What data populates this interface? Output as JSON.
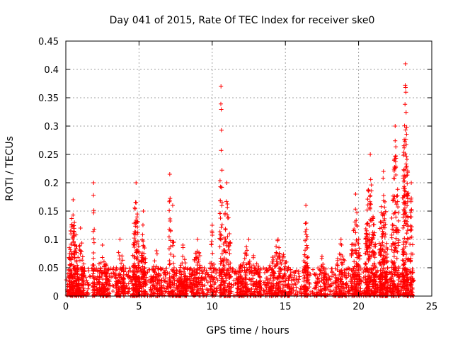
{
  "chart_data": {
    "type": "scatter",
    "title": "Day 041 of 2015, Rate Of TEC Index for receiver ske0",
    "xlabel": "GPS time / hours",
    "ylabel": "ROTI / TECUs",
    "xlim": [
      0,
      25
    ],
    "ylim": [
      0,
      0.45
    ],
    "x_ticks": [
      "0",
      "5",
      "10",
      "15",
      "20",
      "25"
    ],
    "x_tick_values": [
      0,
      5,
      10,
      15,
      20,
      25
    ],
    "y_ticks": [
      "0",
      "0.05",
      "0.1",
      "0.15",
      "0.2",
      "0.25",
      "0.3",
      "0.35",
      "0.4",
      "0.45"
    ],
    "y_tick_values": [
      0,
      0.05,
      0.1,
      0.15,
      0.2,
      0.25,
      0.3,
      0.35,
      0.4,
      0.45
    ],
    "grid": true,
    "marker": "+",
    "color": "#ff0000",
    "series": [
      {
        "name": "ROTI",
        "baseline": {
          "x_range": [
            0.0,
            23.8
          ],
          "y_range": [
            0.0,
            0.05
          ],
          "n": 1400
        },
        "clusters": [
          {
            "x": 0.5,
            "peak": 0.17,
            "width": 0.6,
            "n": 140
          },
          {
            "x": 1.0,
            "peak": 0.12,
            "width": 0.5,
            "n": 80
          },
          {
            "x": 1.9,
            "peak": 0.2,
            "width": 0.15,
            "n": 35
          },
          {
            "x": 2.5,
            "peak": 0.09,
            "width": 0.8,
            "n": 80
          },
          {
            "x": 3.7,
            "peak": 0.1,
            "width": 0.6,
            "n": 70
          },
          {
            "x": 4.8,
            "peak": 0.2,
            "width": 0.45,
            "n": 130
          },
          {
            "x": 5.3,
            "peak": 0.15,
            "width": 0.3,
            "n": 60
          },
          {
            "x": 6.2,
            "peak": 0.08,
            "width": 0.8,
            "n": 60
          },
          {
            "x": 7.1,
            "peak": 0.215,
            "width": 0.15,
            "n": 30
          },
          {
            "x": 7.3,
            "peak": 0.16,
            "width": 0.2,
            "n": 25
          },
          {
            "x": 8.0,
            "peak": 0.09,
            "width": 0.6,
            "n": 70
          },
          {
            "x": 9.0,
            "peak": 0.1,
            "width": 0.7,
            "n": 70
          },
          {
            "x": 10.0,
            "peak": 0.125,
            "width": 0.3,
            "n": 30
          },
          {
            "x": 10.6,
            "peak": 0.37,
            "width": 0.2,
            "n": 50
          },
          {
            "x": 11.0,
            "peak": 0.2,
            "width": 0.5,
            "n": 90
          },
          {
            "x": 12.5,
            "peak": 0.1,
            "width": 1.6,
            "n": 140
          },
          {
            "x": 14.5,
            "peak": 0.1,
            "width": 1.6,
            "n": 140
          },
          {
            "x": 16.4,
            "peak": 0.16,
            "width": 0.3,
            "n": 60
          },
          {
            "x": 17.5,
            "peak": 0.07,
            "width": 0.8,
            "n": 50
          },
          {
            "x": 18.8,
            "peak": 0.1,
            "width": 0.8,
            "n": 70
          },
          {
            "x": 19.8,
            "peak": 0.18,
            "width": 0.6,
            "n": 110
          },
          {
            "x": 20.8,
            "peak": 0.25,
            "width": 0.7,
            "n": 180
          },
          {
            "x": 21.7,
            "peak": 0.22,
            "width": 0.6,
            "n": 160
          },
          {
            "x": 22.5,
            "peak": 0.3,
            "width": 0.5,
            "n": 140
          },
          {
            "x": 23.2,
            "peak": 0.41,
            "width": 0.4,
            "n": 170
          },
          {
            "x": 23.6,
            "peak": 0.2,
            "width": 0.2,
            "n": 50
          }
        ]
      }
    ]
  }
}
